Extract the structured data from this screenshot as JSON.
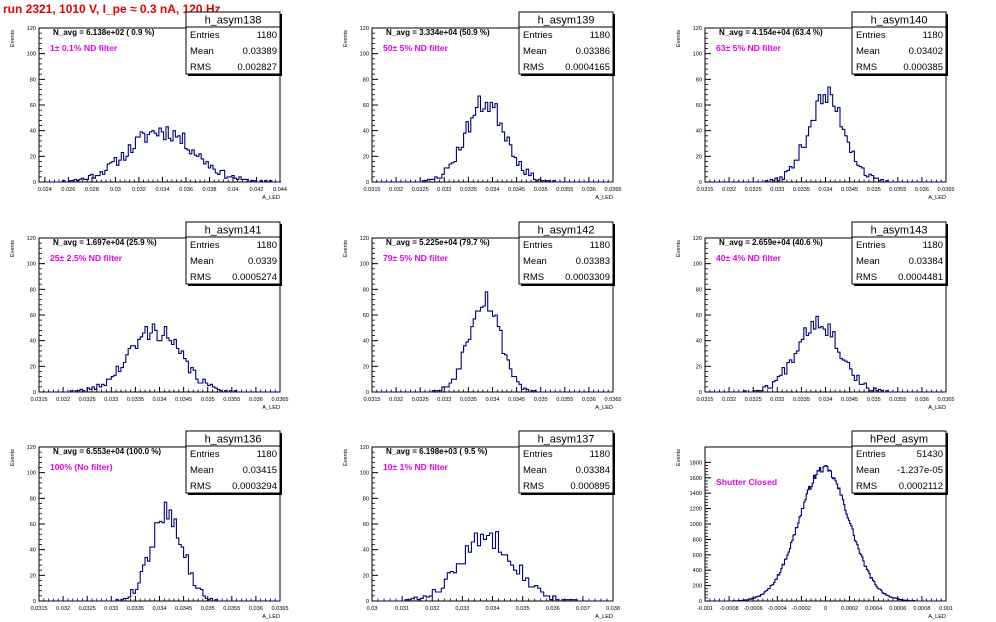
{
  "page": {
    "title": "run 2321,  1010 V, I_pe ≈ 0.3 nA, 120 Hz",
    "title_color": "#e00000",
    "line_color": "#00007a",
    "annotation_color": "#e600e6",
    "y_axis_label": "Events",
    "x_axis_label": "A_LED"
  },
  "stats_labels": {
    "entries": "Entries",
    "mean": "Mean",
    "rms": "RMS"
  },
  "chart_data": [
    {
      "type": "histogram",
      "name": "h_asym138",
      "nAvg": "N_avg = 6.138e+02 ( 0.9 %)",
      "filter": "1± 0.1% ND filter",
      "entries": "1180",
      "mean": "0.03389",
      "rms": "0.002827",
      "xlim": [
        0.0235,
        0.044
      ],
      "ylim": [
        0,
        120
      ],
      "xticks": [
        0.024,
        0.026,
        0.028,
        0.03,
        0.032,
        0.034,
        0.036,
        0.038,
        0.04,
        0.042,
        0.044
      ],
      "xtick_labels": [
        "0.024",
        "0.026",
        "0.028",
        "0.03",
        "0.032",
        "0.034",
        "0.036",
        "0.038",
        "0.04",
        "0.042",
        "0.044"
      ],
      "yticks": [
        0,
        20,
        40,
        60,
        80,
        100,
        120
      ],
      "dist": {
        "center": 0.0339,
        "width": 0.0028,
        "peak": 40,
        "bin": 0.0002,
        "seed": 11
      }
    },
    {
      "type": "histogram",
      "name": "h_asym139",
      "nAvg": "N_avg = 3.334e+04 (50.9 %)",
      "filter": "50± 5% ND filter",
      "entries": "1180",
      "mean": "0.03386",
      "rms": "0.0004165",
      "xlim": [
        0.0315,
        0.0365
      ],
      "ylim": [
        0,
        120
      ],
      "xticks": [
        0.0315,
        0.032,
        0.0325,
        0.033,
        0.0335,
        0.034,
        0.0345,
        0.035,
        0.0355,
        0.036,
        0.0365
      ],
      "xtick_labels": [
        "0.0315",
        "0.032",
        "0.0325",
        "0.033",
        "0.0335",
        "0.034",
        "0.0345",
        "0.035",
        "0.0355",
        "0.036",
        "0.0365"
      ],
      "yticks": [
        0,
        20,
        40,
        60,
        80,
        100,
        120
      ],
      "dist": {
        "center": 0.03386,
        "width": 0.00042,
        "peak": 62,
        "bin": 5e-05,
        "seed": 23
      }
    },
    {
      "type": "histogram",
      "name": "h_asym140",
      "nAvg": "N_avg = 4.154e+04 (63.4 %)",
      "filter": "63± 5% ND filter",
      "entries": "1180",
      "mean": "0.03402",
      "rms": "0.000385",
      "xlim": [
        0.0315,
        0.0365
      ],
      "ylim": [
        0,
        120
      ],
      "xticks": [
        0.0315,
        0.032,
        0.0325,
        0.033,
        0.0335,
        0.034,
        0.0345,
        0.035,
        0.0355,
        0.036,
        0.0365
      ],
      "xtick_labels": [
        "0.0315",
        "0.032",
        "0.0325",
        "0.033",
        "0.0335",
        "0.034",
        "0.0345",
        "0.035",
        "0.0355",
        "0.036",
        "0.0365"
      ],
      "yticks": [
        0,
        20,
        40,
        60,
        80,
        100,
        120
      ],
      "dist": {
        "center": 0.03402,
        "width": 0.000385,
        "peak": 66,
        "bin": 5e-05,
        "seed": 37
      }
    },
    {
      "type": "histogram",
      "name": "h_asym141",
      "nAvg": "N_avg = 1.697e+04 (25.9 %)",
      "filter": "25± 2.5% ND filter",
      "entries": "1180",
      "mean": "0.0339",
      "rms": "0.0005274",
      "xlim": [
        0.0315,
        0.0365
      ],
      "ylim": [
        0,
        120
      ],
      "xticks": [
        0.0315,
        0.032,
        0.0325,
        0.033,
        0.0335,
        0.034,
        0.0345,
        0.035,
        0.0355,
        0.036,
        0.0365
      ],
      "xtick_labels": [
        "0.0315",
        "0.032",
        "0.0325",
        "0.033",
        "0.0335",
        "0.034",
        "0.0345",
        "0.035",
        "0.0355",
        "0.036",
        "0.0365"
      ],
      "yticks": [
        0,
        20,
        40,
        60,
        80,
        100,
        120
      ],
      "dist": {
        "center": 0.0339,
        "width": 0.00053,
        "peak": 48,
        "bin": 5e-05,
        "seed": 41
      }
    },
    {
      "type": "histogram",
      "name": "h_asym142",
      "nAvg": "N_avg = 5.225e+04 (79.7 %)",
      "filter": "79± 5% ND filter",
      "entries": "1180",
      "mean": "0.03383",
      "rms": "0.0003309",
      "xlim": [
        0.0315,
        0.0365
      ],
      "ylim": [
        0,
        120
      ],
      "xticks": [
        0.0315,
        0.032,
        0.0325,
        0.033,
        0.0335,
        0.034,
        0.0345,
        0.035,
        0.0355,
        0.036,
        0.0365
      ],
      "xtick_labels": [
        "0.0315",
        "0.032",
        "0.0325",
        "0.033",
        "0.0335",
        "0.034",
        "0.0345",
        "0.035",
        "0.0355",
        "0.036",
        "0.0365"
      ],
      "yticks": [
        0,
        20,
        40,
        60,
        80,
        100,
        120
      ],
      "dist": {
        "center": 0.03383,
        "width": 0.00033,
        "peak": 74,
        "bin": 5e-05,
        "seed": 53
      }
    },
    {
      "type": "histogram",
      "name": "h_asym143",
      "nAvg": "N_avg = 2.659e+04 (40.6 %)",
      "filter": "40± 4% ND filter",
      "entries": "1180",
      "mean": "0.03384",
      "rms": "0.0004481",
      "xlim": [
        0.0315,
        0.0365
      ],
      "ylim": [
        0,
        120
      ],
      "xticks": [
        0.0315,
        0.032,
        0.0325,
        0.033,
        0.0335,
        0.034,
        0.0345,
        0.035,
        0.0355,
        0.036,
        0.0365
      ],
      "xtick_labels": [
        "0.0315",
        "0.032",
        "0.0325",
        "0.033",
        "0.0335",
        "0.034",
        "0.0345",
        "0.035",
        "0.0355",
        "0.036",
        "0.0365"
      ],
      "yticks": [
        0,
        20,
        40,
        60,
        80,
        100,
        120
      ],
      "dist": {
        "center": 0.03384,
        "width": 0.00045,
        "peak": 56,
        "bin": 5e-05,
        "seed": 67
      }
    },
    {
      "type": "histogram",
      "name": "h_asym136",
      "nAvg": "N_avg = 6.553e+04 (100.0 %)",
      "filter": "100% (No filter)",
      "entries": "1180",
      "mean": "0.03415",
      "rms": "0.0003294",
      "xlim": [
        0.0315,
        0.0365
      ],
      "ylim": [
        0,
        120
      ],
      "xticks": [
        0.0315,
        0.032,
        0.0325,
        0.033,
        0.0335,
        0.034,
        0.0345,
        0.035,
        0.0355,
        0.036,
        0.0365
      ],
      "xtick_labels": [
        "0.0315",
        "0.032",
        "0.0325",
        "0.033",
        "0.0335",
        "0.034",
        "0.0345",
        "0.035",
        "0.0355",
        "0.036",
        "0.0365"
      ],
      "yticks": [
        0,
        20,
        40,
        60,
        80,
        100,
        120
      ],
      "dist": {
        "center": 0.03415,
        "width": 0.00033,
        "peak": 70,
        "bin": 5e-05,
        "seed": 79
      }
    },
    {
      "type": "histogram",
      "name": "h_asym137",
      "nAvg": "N_avg = 6.198e+03 ( 9.5 %)",
      "filter": "10± 1% ND filter",
      "entries": "1180",
      "mean": "0.03384",
      "rms": "0.000895",
      "xlim": [
        0.03,
        0.038
      ],
      "ylim": [
        0,
        120
      ],
      "xticks": [
        0.03,
        0.031,
        0.032,
        0.033,
        0.034,
        0.035,
        0.036,
        0.037,
        0.038
      ],
      "xtick_labels": [
        "0.03",
        "0.031",
        "0.032",
        "0.033",
        "0.034",
        "0.035",
        "0.036",
        "0.037",
        "0.038"
      ],
      "yticks": [
        0,
        20,
        40,
        60,
        80,
        100,
        120
      ],
      "dist": {
        "center": 0.03384,
        "width": 0.0009,
        "peak": 50,
        "bin": 0.0001,
        "seed": 83
      }
    },
    {
      "type": "histogram",
      "name": "hPed_asym",
      "nAvg": "",
      "filter": "Shutter Closed",
      "entries": "51430",
      "mean": "-1.237e-05",
      "rms": "0.0002112",
      "xlim": [
        -0.001,
        0.001
      ],
      "ylim": [
        0,
        2000
      ],
      "xticks": [
        -0.001,
        -0.0008,
        -0.0006,
        -0.0004,
        -0.0002,
        0,
        0.0002,
        0.0004,
        0.0006,
        0.0008,
        0.001
      ],
      "xtick_labels": [
        "-0.001",
        "-0.0008",
        "-0.0006",
        "-0.0004",
        "-0.0002",
        "0",
        "0.0002",
        "0.0004",
        "0.0006",
        "0.0008",
        "0.001"
      ],
      "yticks": [
        0,
        200,
        400,
        600,
        800,
        1000,
        1200,
        1400,
        1600,
        1800
      ],
      "dist": {
        "center": -1.24e-05,
        "width": 0.00021,
        "peak": 1720,
        "bin": 1e-05,
        "seed": 97
      }
    }
  ]
}
